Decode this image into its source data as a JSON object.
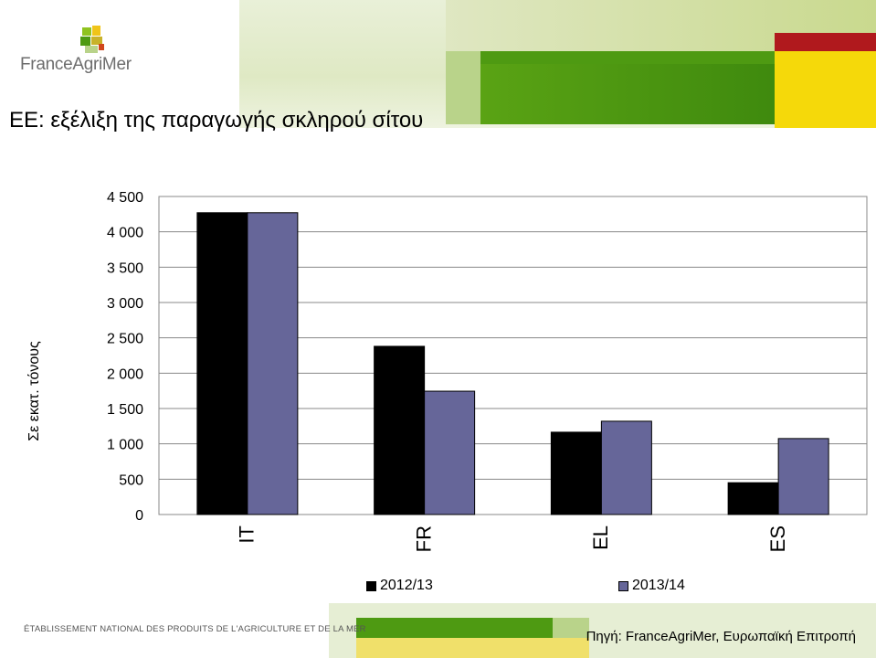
{
  "logo": {
    "text": "FranceAgriMer"
  },
  "title": "ΕΕ: εξέλιξη της παραγωγής σκληρού σίτου",
  "footer": {
    "org": "ÉTABLISSEMENT NATIONAL DES PRODUITS DE L'AGRICULTURE ET DE LA MER",
    "source": "Πηγή: FranceAgriMer, Ευρωπαϊκή Επιτροπή"
  },
  "colors": {
    "series1": "#000000",
    "series2": "#666699",
    "brand_green": "#4e9a12",
    "brand_yellow": "#f5d90a",
    "brand_red": "#b0191d"
  },
  "chart_data": {
    "type": "bar",
    "title": "",
    "xlabel": "",
    "ylabel": "Σε εκατ. τόνους",
    "categories": [
      "IT",
      "FR",
      "EL",
      "ES"
    ],
    "series": [
      {
        "name": "2012/13",
        "color": "#000000",
        "values": [
          4270,
          2380,
          1165,
          450
        ]
      },
      {
        "name": "2013/14",
        "color": "#666699",
        "values": [
          4270,
          1745,
          1320,
          1075
        ]
      }
    ],
    "ylim": [
      0,
      4500
    ],
    "yticks": [
      "0",
      "500",
      "1 000",
      "1 500",
      "2 000",
      "2 500",
      "3 000",
      "3 500",
      "4 000",
      "4 500"
    ],
    "ytick_values": [
      0,
      500,
      1000,
      1500,
      2000,
      2500,
      3000,
      3500,
      4000,
      4500
    ],
    "grid": true,
    "legend": "bottom"
  }
}
